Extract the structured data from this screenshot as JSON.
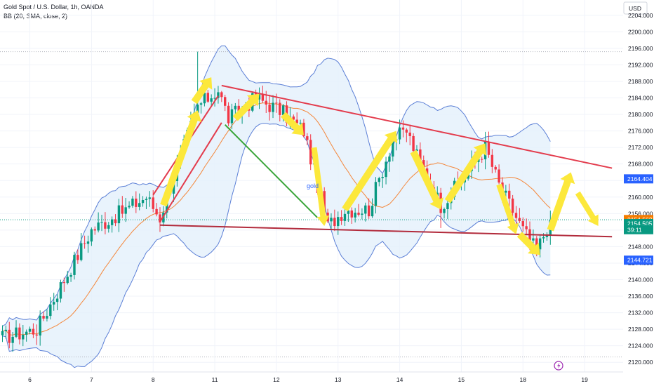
{
  "header": {
    "title": "Gold Spot / U.S. Dollar, 1h, OANDA",
    "indicator": "BB (20, SMA, close, 2)"
  },
  "price_axis": {
    "currency": "USD",
    "ticks": [
      "2120.000",
      "2124.000",
      "2128.000",
      "2132.000",
      "2136.000",
      "2140.000",
      "2144.000",
      "2148.000",
      "2152.000",
      "2156.000",
      "2160.000",
      "2164.000",
      "2168.000",
      "2172.000",
      "2176.000",
      "2180.000",
      "2184.000",
      "2188.000",
      "2192.000",
      "2196.000",
      "2200.000",
      "2204.000"
    ]
  },
  "badges": [
    {
      "label": "2164.404",
      "price": 2164.404,
      "color": "#2962ff"
    },
    {
      "label": "2154.562",
      "price": 2154.562,
      "color": "#f57c00"
    },
    {
      "label": "2154.505",
      "price": 2153.6,
      "color": "#089981"
    },
    {
      "label": "39:11",
      "price": 2152.1,
      "color": "#089981"
    },
    {
      "label": "2144.721",
      "price": 2144.721,
      "color": "#2962ff"
    }
  ],
  "annotation_text": "gold",
  "colors": {
    "up": "#089981",
    "down": "#f23645",
    "bb_band": "#5b7fd6",
    "bb_fill": "#e3f0fb",
    "bb_basis": "#f4873b",
    "trendline_red": "#e33b4c",
    "trendline_green": "#3aa53a",
    "arrow": "#fce83b",
    "grid": "#f0f3fa"
  },
  "chart_data": {
    "type": "candlestick",
    "title": "Gold Spot / U.S. Dollar, 1h, OANDA",
    "indicator": "BB (20, SMA, close, 2)",
    "x_ticks": [
      {
        "label": "6",
        "index": 8
      },
      {
        "label": "7",
        "index": 26
      },
      {
        "label": "8",
        "index": 44
      },
      {
        "label": "11",
        "index": 62
      },
      {
        "label": "12",
        "index": 80
      },
      {
        "label": "13",
        "index": 98
      },
      {
        "label": "14",
        "index": 116
      },
      {
        "label": "15",
        "index": 134
      },
      {
        "label": "18",
        "index": 152
      },
      {
        "label": "19",
        "index": 170
      }
    ],
    "ylim": [
      2118,
      2206
    ],
    "close_path": [
      {
        "i": 0,
        "p": 2126
      },
      {
        "i": 10,
        "p": 2128
      },
      {
        "i": 18,
        "p": 2140
      },
      {
        "i": 26,
        "p": 2152
      },
      {
        "i": 34,
        "p": 2156
      },
      {
        "i": 42,
        "p": 2160
      },
      {
        "i": 46,
        "p": 2155
      },
      {
        "i": 52,
        "p": 2170
      },
      {
        "i": 57,
        "p": 2182
      },
      {
        "i": 63,
        "p": 2186
      },
      {
        "i": 66,
        "p": 2179
      },
      {
        "i": 74,
        "p": 2184
      },
      {
        "i": 81,
        "p": 2181
      },
      {
        "i": 88,
        "p": 2176
      },
      {
        "i": 95,
        "p": 2153
      },
      {
        "i": 100,
        "p": 2157
      },
      {
        "i": 107,
        "p": 2157
      },
      {
        "i": 114,
        "p": 2174
      },
      {
        "i": 118,
        "p": 2176
      },
      {
        "i": 121,
        "p": 2170
      },
      {
        "i": 128,
        "p": 2158
      },
      {
        "i": 134,
        "p": 2164
      },
      {
        "i": 141,
        "p": 2172
      },
      {
        "i": 145,
        "p": 2163
      },
      {
        "i": 152,
        "p": 2152
      },
      {
        "i": 156,
        "p": 2147
      },
      {
        "i": 160,
        "p": 2154.5
      }
    ],
    "price_lines": [
      {
        "price": 2195.2,
        "style": "dotted"
      },
      {
        "price": 2121.3,
        "style": "dotted"
      }
    ],
    "trendlines": [
      {
        "color": "red",
        "from": {
          "i": 64,
          "p": 2187
        },
        "to": {
          "i": 178,
          "p": 2167
        }
      },
      {
        "color": "darkred",
        "from": {
          "i": 46,
          "p": 2153.2
        },
        "to": {
          "i": 178,
          "p": 2150.4
        }
      },
      {
        "color": "red",
        "from": {
          "i": 44,
          "p": 2160.5
        },
        "to": {
          "i": 63,
          "p": 2184.5
        }
      },
      {
        "color": "red",
        "from": {
          "i": 46,
          "p": 2154.0
        },
        "to": {
          "i": 64,
          "p": 2178.0
        }
      },
      {
        "color": "green",
        "from": {
          "i": 65,
          "p": 2177.5
        },
        "to": {
          "i": 92,
          "p": 2155.0
        }
      }
    ]
  }
}
